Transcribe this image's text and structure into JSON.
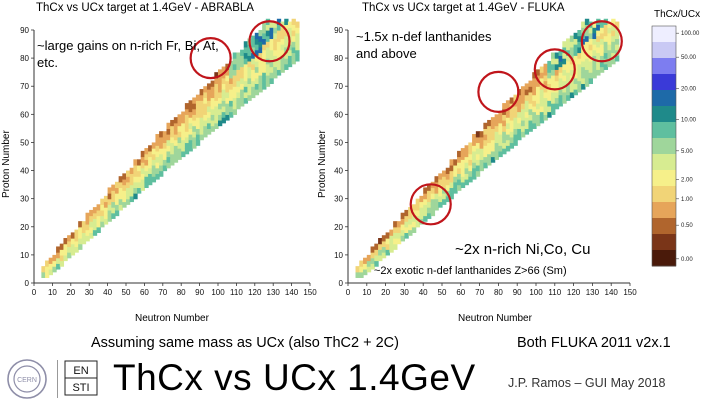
{
  "slide": {
    "bottom_left_text": "Assuming same mass as UCx (also ThC2 + 2C)",
    "bottom_right_text": "Both FLUKA 2011 v2x.1",
    "main_title": "ThCx vs UCx 1.4GeV",
    "credit": "J.P. Ramos – GUI May 2018",
    "logo_left_text": "CERN",
    "logo_right_text": [
      "EN",
      "STI"
    ]
  },
  "colors": {
    "circle": "#c0151b",
    "low": "#5a1e0c",
    "mid": "#f4f07a",
    "high": "#3a3ad8"
  },
  "color_scale": {
    "title": "ThCx/UCx",
    "ticks": [
      "100.00",
      "50.00",
      "20.00",
      "10.00",
      "5.00",
      "2.00",
      "1.00",
      "0.50",
      "0.00"
    ]
  },
  "chart_data": [
    {
      "type": "heatmap",
      "title": "ThCx vs UCx target at 1.4GeV - ABRABLA",
      "xlabel": "Neutron Number",
      "ylabel": "Proton Number",
      "xlim": [
        0,
        150
      ],
      "ylim": [
        0,
        90
      ],
      "x_ticks": [
        "0",
        "10",
        "20",
        "30",
        "40",
        "50",
        "60",
        "70",
        "80",
        "90",
        "100",
        "110",
        "120",
        "130",
        "140",
        "150"
      ],
      "y_ticks": [
        "0",
        "10",
        "20",
        "30",
        "40",
        "50",
        "60",
        "70",
        "80",
        "90"
      ],
      "annotations": [
        "~large gains on n-rich Fr, Bi, At, etc."
      ],
      "highlight_regions": [
        {
          "neutron": 96,
          "proton": 80
        },
        {
          "neutron": 128,
          "proton": 86
        }
      ]
    },
    {
      "type": "heatmap",
      "title": "ThCx vs UCx target at 1.4GeV - FLUKA",
      "xlabel": "Neutron Number",
      "ylabel": "Proton Number",
      "xlim": [
        0,
        150
      ],
      "ylim": [
        0,
        90
      ],
      "x_ticks": [
        "0",
        "10",
        "20",
        "30",
        "40",
        "50",
        "60",
        "70",
        "80",
        "90",
        "100",
        "110",
        "120",
        "130",
        "140",
        "150"
      ],
      "y_ticks": [
        "0",
        "10",
        "20",
        "30",
        "40",
        "50",
        "60",
        "70",
        "80",
        "90"
      ],
      "annotations": [
        "~1.5x n-def lanthanides and above",
        "~2x n-rich Ni,Co, Cu",
        "~2x exotic n-def lanthanides Z>66 (Sm)"
      ],
      "highlight_regions": [
        {
          "neutron": 80,
          "proton": 68
        },
        {
          "neutron": 110,
          "proton": 76
        },
        {
          "neutron": 135,
          "proton": 86
        },
        {
          "neutron": 44,
          "proton": 28
        }
      ]
    }
  ]
}
